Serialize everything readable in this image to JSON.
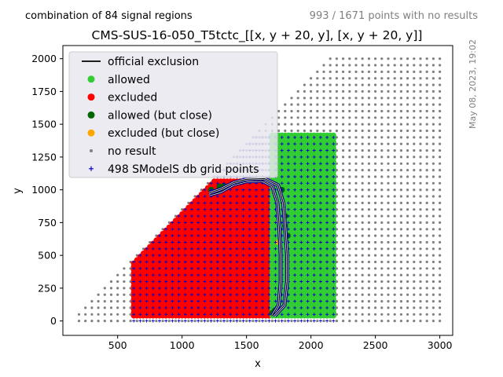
{
  "header": {
    "left_note": "combination of 84 signal regions",
    "right_note": "993 / 1671 points with no results",
    "timestamp": "May 08, 2023, 19:02"
  },
  "chart_data": {
    "type": "scatter",
    "title": "CMS-SUS-16-050_T5tctc_[[x, y + 20, y], [x, y + 20, y]]",
    "xlabel": "x",
    "ylabel": "y",
    "xlim": [
      75,
      3100
    ],
    "ylim": [
      -110,
      2100
    ],
    "xticks": [
      500,
      1000,
      1500,
      2000,
      2500,
      3000
    ],
    "yticks": [
      0,
      250,
      500,
      750,
      1000,
      1250,
      1500,
      1750,
      2000
    ],
    "grid": false,
    "legend_position": "top-left",
    "colors": {
      "official_exclusion": "#000000",
      "allowed": "#32cd32",
      "excluded": "#ff0000",
      "allowed_close": "#006400",
      "excluded_close": "#ffa500",
      "no_result": "#808080",
      "grid_points": "#0000cc"
    },
    "legend": [
      {
        "label": "official exclusion",
        "marker": "line",
        "color": "#000000"
      },
      {
        "label": "allowed",
        "marker": "circle",
        "color": "#32cd32"
      },
      {
        "label": "excluded",
        "marker": "circle",
        "color": "#ff0000"
      },
      {
        "label": "allowed (but close)",
        "marker": "circle",
        "color": "#006400"
      },
      {
        "label": "excluded (but close)",
        "marker": "circle",
        "color": "#ffa500"
      },
      {
        "label": "no result",
        "marker": "small-dot",
        "color": "#808080"
      },
      {
        "label": "498 SModelS db grid points",
        "marker": "plus",
        "color": "#0000cc"
      }
    ],
    "regions": {
      "no_result_triangle": {
        "x_range": [
          200,
          3000
        ],
        "y_min": 0,
        "y_max": 2000,
        "boundary": "y <= x - 150"
      },
      "excluded_block": {
        "x_range": [
          625,
          1700
        ],
        "y_range": [
          40,
          1075
        ],
        "boundary": "y <= x - 175"
      },
      "allowed_block": {
        "x_range": [
          1700,
          2175
        ],
        "y_range": [
          40,
          1420
        ],
        "boundary": "y <= x - 175"
      }
    },
    "official_exclusion_contour": [
      [
        1700,
        40
      ],
      [
        1750,
        120
      ],
      [
        1765,
        300
      ],
      [
        1765,
        500
      ],
      [
        1755,
        700
      ],
      [
        1740,
        900
      ],
      [
        1700,
        1030
      ],
      [
        1620,
        1070
      ],
      [
        1500,
        1065
      ],
      [
        1400,
        1040
      ],
      [
        1300,
        985
      ],
      [
        1210,
        960
      ]
    ],
    "expected_exclusion_contour": [
      [
        1720,
        40
      ],
      [
        1795,
        120
      ],
      [
        1815,
        300
      ],
      [
        1815,
        500
      ],
      [
        1800,
        720
      ],
      [
        1785,
        900
      ],
      [
        1745,
        1035
      ],
      [
        1640,
        1085
      ],
      [
        1500,
        1080
      ],
      [
        1400,
        1055
      ],
      [
        1300,
        1005
      ],
      [
        1210,
        975
      ]
    ]
  }
}
